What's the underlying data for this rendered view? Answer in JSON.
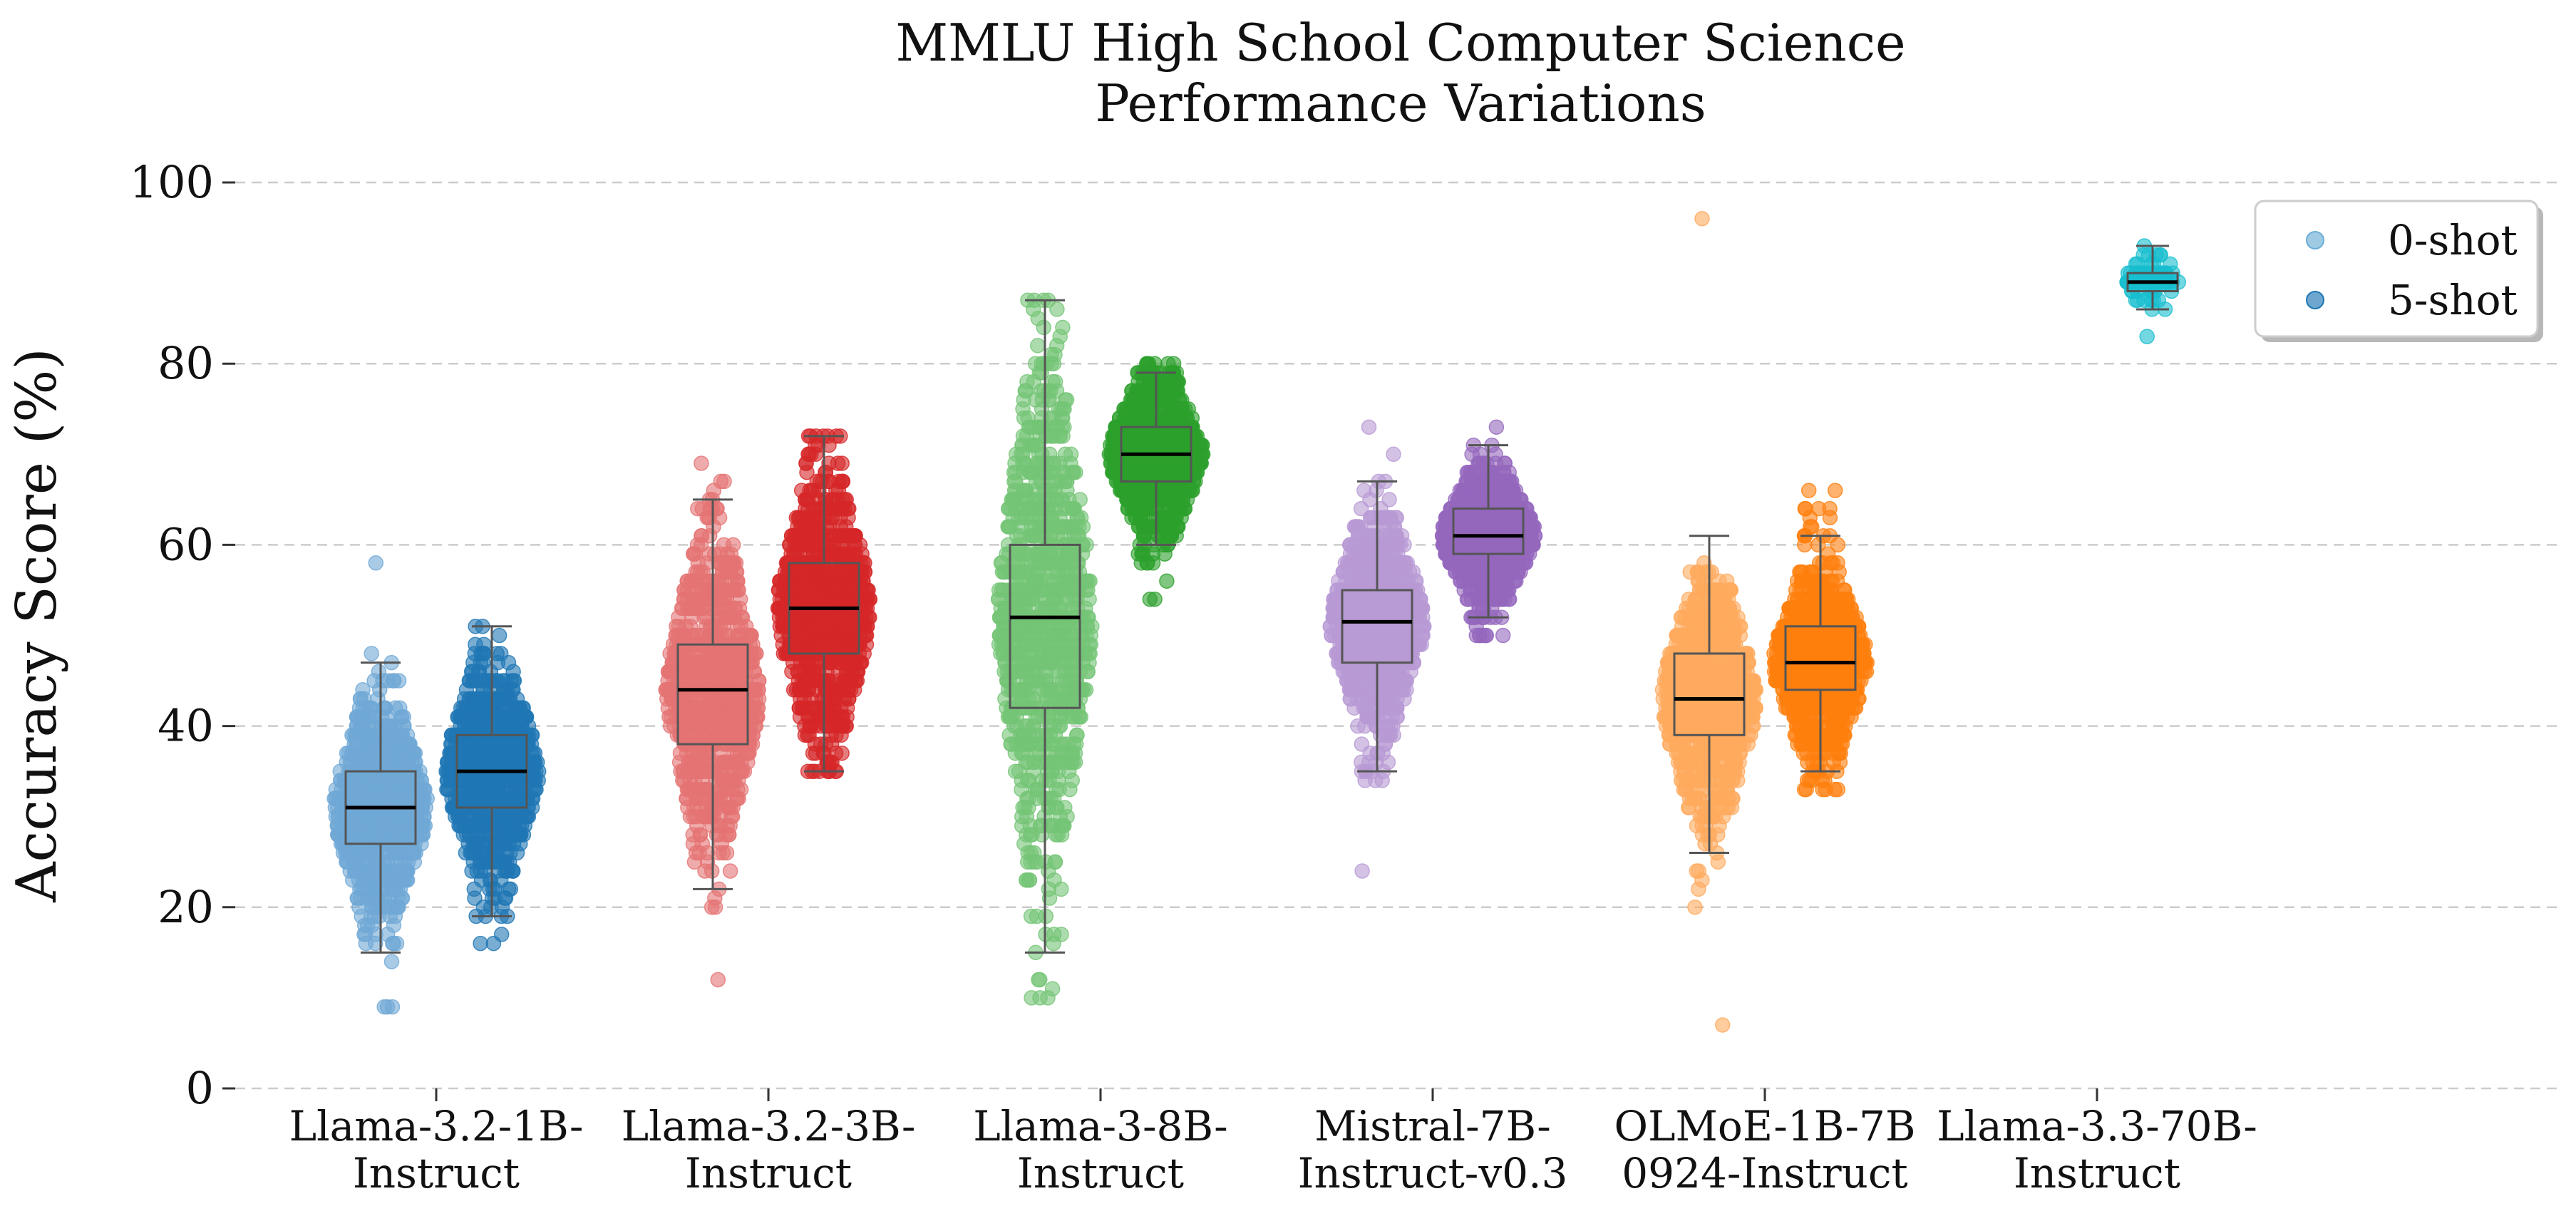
{
  "chart_data": {
    "type": "box-strip",
    "title_lines": [
      "MMLU High School Computer Science",
      "Performance Variations"
    ],
    "ylabel": "Accuracy Score (%)",
    "ylim": [
      0,
      100
    ],
    "yticks": [
      0,
      20,
      40,
      60,
      80,
      100
    ],
    "grid": "horizontal dashed",
    "legend": {
      "placement": "top-right",
      "entries": [
        {
          "label": "0-shot",
          "color": "#6baed6"
        },
        {
          "label": "5-shot",
          "color": "#1f77b4"
        }
      ]
    },
    "models": [
      {
        "label_lines": [
          "Llama-3.2-1B-",
          "Instruct"
        ],
        "series": [
          {
            "shot": "0-shot",
            "color": "#6fa8d6",
            "min": 15,
            "q1": 27,
            "median": 31,
            "q3": 35,
            "max": 47,
            "data_min": 9,
            "data_max": 58
          },
          {
            "shot": "5-shot",
            "color": "#1f77b4",
            "min": 19,
            "q1": 31,
            "median": 35,
            "q3": 39,
            "max": 51,
            "data_min": 16,
            "data_max": 51
          }
        ]
      },
      {
        "label_lines": [
          "Llama-3.2-3B-",
          "Instruct"
        ],
        "series": [
          {
            "shot": "0-shot",
            "color": "#e57373",
            "min": 22,
            "q1": 38,
            "median": 44,
            "q3": 49,
            "max": 65,
            "data_min": 12,
            "data_max": 69
          },
          {
            "shot": "5-shot",
            "color": "#d62728",
            "min": 35,
            "q1": 48,
            "median": 53,
            "q3": 58,
            "max": 72,
            "data_min": 35,
            "data_max": 72
          }
        ]
      },
      {
        "label_lines": [
          "Llama-3-8B-",
          "Instruct"
        ],
        "series": [
          {
            "shot": "0-shot",
            "color": "#74c476",
            "min": 15,
            "q1": 42,
            "median": 52,
            "q3": 60,
            "max": 87,
            "data_min": 10,
            "data_max": 87
          },
          {
            "shot": "5-shot",
            "color": "#2ca02c",
            "min": 60,
            "q1": 67,
            "median": 70,
            "q3": 73,
            "max": 79,
            "data_min": 54,
            "data_max": 80
          }
        ]
      },
      {
        "label_lines": [
          "Mistral-7B-",
          "Instruct-v0.3"
        ],
        "series": [
          {
            "shot": "0-shot",
            "color": "#b89ad4",
            "min": 35,
            "q1": 47,
            "median": 51.5,
            "q3": 55,
            "max": 67,
            "data_min": 24,
            "data_max": 73
          },
          {
            "shot": "5-shot",
            "color": "#9467bd",
            "min": 52,
            "q1": 59,
            "median": 61,
            "q3": 64,
            "max": 71,
            "data_min": 50,
            "data_max": 73
          }
        ]
      },
      {
        "label_lines": [
          "OLMoE-1B-7B",
          "0924-Instruct"
        ],
        "series": [
          {
            "shot": "0-shot",
            "color": "#ffaa5e",
            "min": 26,
            "q1": 39,
            "median": 43,
            "q3": 48,
            "max": 61,
            "data_min": 7,
            "data_max": 96
          },
          {
            "shot": "5-shot",
            "color": "#ff7f0e",
            "min": 35,
            "q1": 44,
            "median": 47,
            "q3": 51,
            "max": 61,
            "data_min": 33,
            "data_max": 66
          }
        ]
      },
      {
        "label_lines": [
          "Llama-3.3-70B-",
          "Instruct"
        ],
        "series": [
          {
            "shot": "5-shot",
            "color": "#17becf",
            "min": 86,
            "q1": 88,
            "median": 89,
            "q3": 90,
            "max": 93,
            "data_min": 83,
            "data_max": 93
          }
        ]
      }
    ]
  }
}
